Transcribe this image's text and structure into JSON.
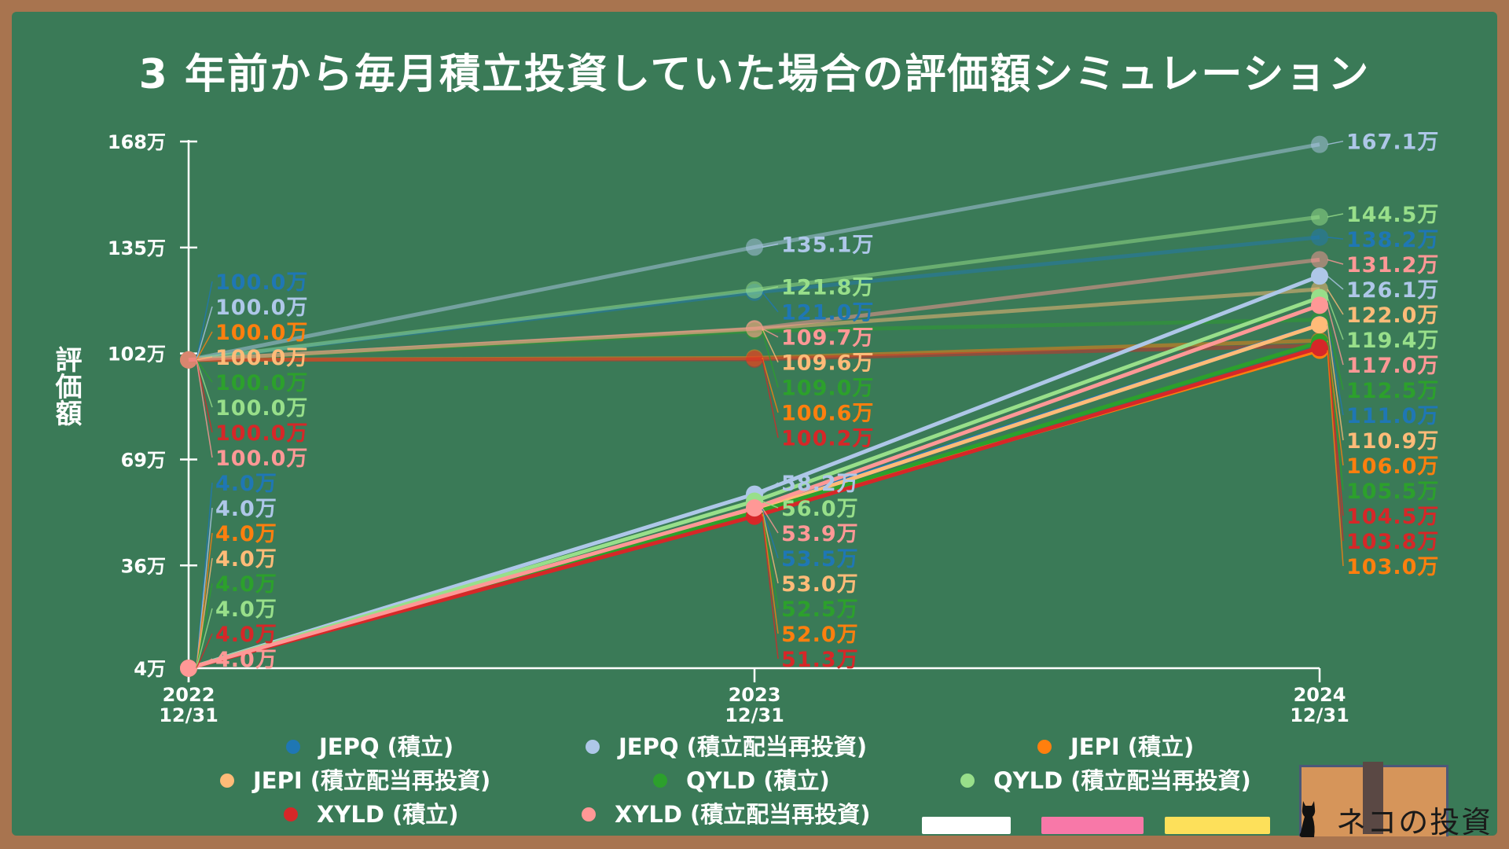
{
  "title": "3 年前から毎月積立投資していた場合の評価額シミュレーション",
  "colors": {
    "board": "#3a7a57",
    "frame": "#a8744f"
  },
  "chart_data": {
    "type": "line",
    "title": "3 年前から毎月積立投資していた場合の評価額シミュレーション",
    "ylabel": "評価額",
    "xlabel": "",
    "x": [
      "2022\n12/31",
      "2023\n12/31",
      "2024\n12/31"
    ],
    "ylim": [
      4,
      168
    ],
    "yticks": [
      4,
      36,
      69,
      102,
      135,
      168
    ],
    "ytick_labels": [
      "4万",
      "36万",
      "69万",
      "102万",
      "135万",
      "168万"
    ],
    "value_unit": "万",
    "legend_position": "bottom",
    "grid": false,
    "series": [
      {
        "name": "JEPQ (積立)",
        "color": "#1f77b4",
        "values": [
          4.0,
          53.5,
          111.0
        ],
        "legend": true
      },
      {
        "name": "JEPQ (積立配当再投資)",
        "color": "#aec7e8",
        "values": [
          4.0,
          58.2,
          126.1
        ],
        "legend": true
      },
      {
        "name": "JEPI (積立)",
        "color": "#ff7f0e",
        "values": [
          4.0,
          52.0,
          103.0
        ],
        "legend": true
      },
      {
        "name": "JEPI (積立配当再投資)",
        "color": "#ffbb78",
        "values": [
          4.0,
          53.0,
          110.9
        ],
        "legend": true
      },
      {
        "name": "QYLD (積立)",
        "color": "#2ca02c",
        "values": [
          4.0,
          52.5,
          105.5
        ],
        "legend": true
      },
      {
        "name": "QYLD (積立配当再投資)",
        "color": "#98df8a",
        "values": [
          4.0,
          56.0,
          119.4
        ],
        "legend": true
      },
      {
        "name": "XYLD (積立)",
        "color": "#d62728",
        "values": [
          4.0,
          51.3,
          103.8
        ],
        "legend": true
      },
      {
        "name": "XYLD (積立配当再投資)",
        "color": "#ff9896",
        "values": [
          4.0,
          53.9,
          117.0
        ],
        "legend": true
      },
      {
        "color": "#1f77b4",
        "faded": true,
        "values": [
          100.0,
          121.0,
          138.2
        ]
      },
      {
        "color": "#aec7e8",
        "faded": true,
        "values": [
          100.0,
          135.1,
          167.1
        ]
      },
      {
        "color": "#ff7f0e",
        "faded": true,
        "values": [
          100.0,
          100.6,
          106.0
        ]
      },
      {
        "color": "#ffbb78",
        "faded": true,
        "values": [
          100.0,
          109.6,
          122.0
        ]
      },
      {
        "color": "#2ca02c",
        "faded": true,
        "values": [
          100.0,
          109.0,
          112.5
        ]
      },
      {
        "color": "#98df8a",
        "faded": true,
        "values": [
          100.0,
          121.8,
          144.5
        ]
      },
      {
        "color": "#d62728",
        "faded": true,
        "values": [
          100.0,
          100.2,
          104.5
        ]
      },
      {
        "color": "#ff9896",
        "faded": true,
        "values": [
          100.0,
          109.7,
          131.2
        ]
      }
    ]
  },
  "decorations": {
    "erasers": [
      "#ffffff",
      "#f878a8",
      "#fde05a"
    ],
    "logo_text": "ネコの投資"
  }
}
